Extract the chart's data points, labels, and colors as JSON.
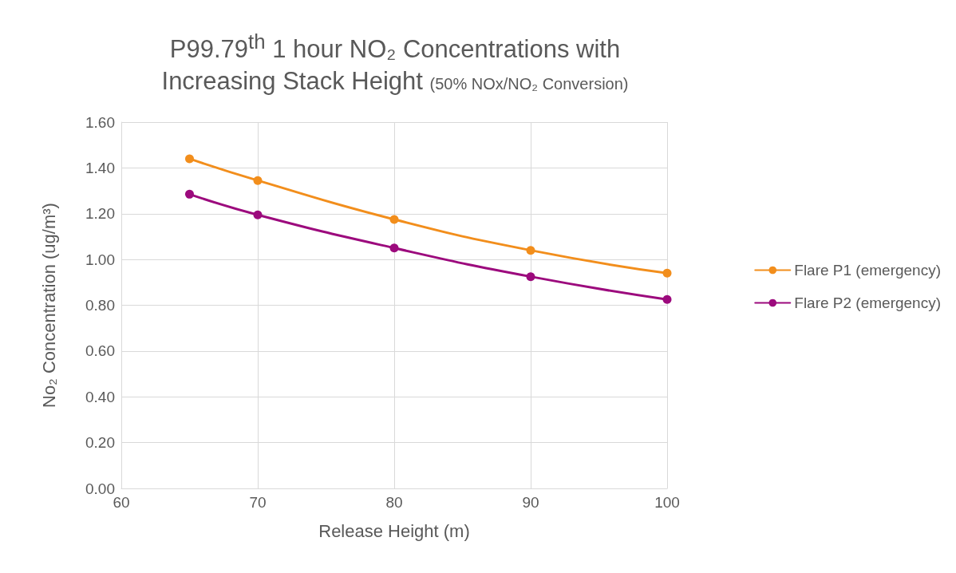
{
  "chart_data": {
    "type": "line",
    "title": "P99.79$^{th}$ 1 hour NO₂ Concentrations with Increasing Stack Height",
    "subtitle": "(50% NOx/NO₂ Conversion)",
    "xlabel": "Release Height (m)",
    "ylabel": "No₂ Concentration (ug/m³)",
    "x": [
      65,
      70,
      80,
      90,
      100
    ],
    "series": [
      {
        "name": "Flare P1 (emergency)",
        "color": "#f28e1c",
        "values": [
          1.44,
          1.345,
          1.175,
          1.04,
          0.94
        ]
      },
      {
        "name": "Flare P2 (emergency)",
        "color": "#9c0a7d",
        "values": [
          1.285,
          1.195,
          1.05,
          0.925,
          0.825
        ]
      }
    ],
    "xlim": [
      60,
      100
    ],
    "xticks": [
      60,
      70,
      80,
      90,
      100
    ],
    "ylim": [
      0,
      1.6
    ],
    "yticks": [
      {
        "value": 0,
        "label": "0.00"
      },
      {
        "value": 0.2,
        "label": "0.20"
      },
      {
        "value": 0.4,
        "label": "0.40"
      },
      {
        "value": 0.6,
        "label": "0.60"
      },
      {
        "value": 0.8,
        "label": "0.80"
      },
      {
        "value": 1,
        "label": "1.00"
      },
      {
        "value": 1.2,
        "label": "1.20"
      },
      {
        "value": 1.4,
        "label": "1.40"
      },
      {
        "value": 1.6,
        "label": "1.60"
      }
    ],
    "grid": true,
    "legend": "right",
    "marker": "circle",
    "line_style": "solid"
  }
}
